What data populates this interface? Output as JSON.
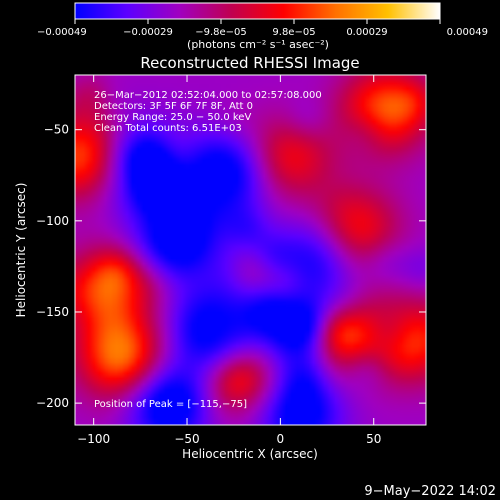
{
  "chart_data": {
    "type": "heatmap",
    "title": "Reconstructed RHESSI Image",
    "xlabel": "Heliocentric X (arcsec)",
    "ylabel": "Heliocentric Y (arcsec)",
    "xlim": [
      -110,
      78
    ],
    "ylim": [
      -212,
      -20
    ],
    "x_ticks": [
      -100,
      -50,
      0,
      50
    ],
    "x_tick_labels": [
      "−100",
      "−50",
      "0",
      "50"
    ],
    "y_ticks": [
      -50,
      -100,
      -150,
      -200
    ],
    "y_tick_labels": [
      "−50",
      "−100",
      "−150",
      "−200"
    ],
    "colorbar": {
      "min": -0.00049,
      "max": 0.00049,
      "tick_labels": [
        "−0.00049",
        "−0.00029",
        "−9.8e−05",
        "9.8e−05",
        "0.00029",
        "0.00049"
      ],
      "unit_label": "(photons cm⁻² s⁻¹ asec⁻²)",
      "colors": [
        "#0000ff",
        "#5c00ff",
        "#a000c0",
        "#c00050",
        "#ff0000",
        "#ff7000",
        "#ffc000",
        "#ffffff"
      ]
    },
    "annotations": [
      "26−Mar−2012 02:52:04.000 to 02:57:08.000",
      "Detectors: 3F 5F 6F 7F 8F, Att 0",
      "Energy Range: 25.0 − 50.0 keV",
      "Clean    Total counts: 6.51E+03"
    ],
    "peak_label": "Position of Peak = [−115,−75]",
    "peak_position": [
      -115,
      -75
    ],
    "hot_spots": [
      {
        "x": -105,
        "y": -65,
        "value": 0.00045
      },
      {
        "x": -85,
        "y": -175,
        "value": 0.00049
      },
      {
        "x": -95,
        "y": -140,
        "value": 0.0004
      },
      {
        "x": 55,
        "y": -40,
        "value": 0.00045
      },
      {
        "x": 70,
        "y": -165,
        "value": 0.0004
      },
      {
        "x": 40,
        "y": -105,
        "value": 0.00035
      },
      {
        "x": 5,
        "y": -65,
        "value": 0.0003
      },
      {
        "x": 35,
        "y": -165,
        "value": 0.00038
      },
      {
        "x": -20,
        "y": -185,
        "value": 0.0003
      }
    ],
    "cold_spots": [
      {
        "x": -75,
        "y": -70,
        "value": -0.00045
      },
      {
        "x": -30,
        "y": -75,
        "value": -0.0004
      },
      {
        "x": -55,
        "y": -110,
        "value": -0.0004
      },
      {
        "x": -35,
        "y": -160,
        "value": -0.00045
      },
      {
        "x": 10,
        "y": -160,
        "value": -0.0004
      },
      {
        "x": -60,
        "y": -200,
        "value": -0.00042
      },
      {
        "x": 10,
        "y": -205,
        "value": -0.00038
      },
      {
        "x": 20,
        "y": -120,
        "value": -0.0003
      }
    ]
  },
  "footer": {
    "timestamp": "9−May−2022 14:02"
  }
}
